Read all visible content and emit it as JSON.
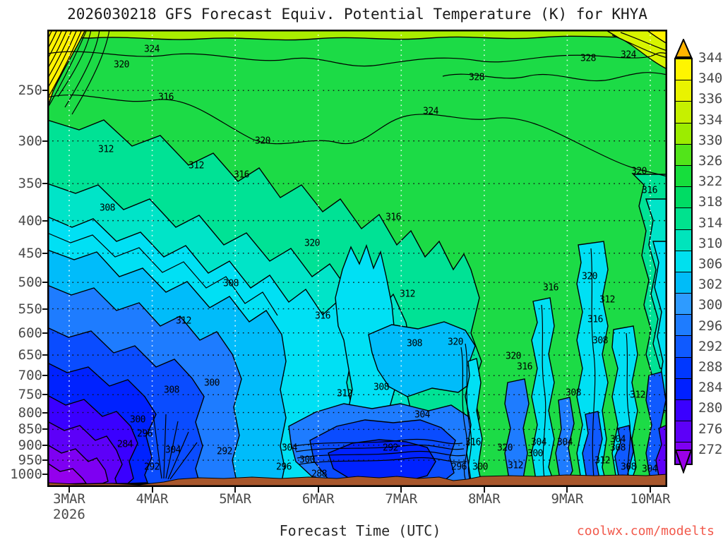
{
  "title": "2026030218 GFS Forecast Equiv. Potential Temperature (K) for KHYA",
  "watermark": {
    "text": "coolwx.com/modelts",
    "color": "#F2594B"
  },
  "chart_data": {
    "type": "heatmap",
    "title": "2026030218 GFS Forecast Equiv. Potential Temperature (K) for KHYA",
    "xlabel": "Forecast Time (UTC)",
    "x_ticks": [
      "3MAR",
      "4MAR",
      "5MAR",
      "6MAR",
      "7MAR",
      "8MAR",
      "9MAR",
      "10MAR"
    ],
    "year": "2026",
    "y_ticks": [
      250,
      300,
      350,
      400,
      450,
      500,
      550,
      600,
      650,
      700,
      750,
      800,
      850,
      900,
      950,
      1000
    ],
    "y_scale": "log-pressure (hPa)",
    "units": "K",
    "grid": "dotted horizontal black at pressure levels, dotted white vertical at day ticks",
    "terrain_color": "#A8572C",
    "colorbar": {
      "labels": [
        "344",
        "340",
        "336",
        "334",
        "330",
        "326",
        "322",
        "318",
        "314",
        "310",
        "306",
        "302",
        "300",
        "296",
        "292",
        "288",
        "284",
        "280",
        "276",
        "272"
      ],
      "colors": [
        "#FFF500",
        "#E9F300",
        "#C6F000",
        "#9CEC00",
        "#52E41A",
        "#16DE3C",
        "#00DC64",
        "#00E28E",
        "#00E4BC",
        "#00E0EE",
        "#00BCF8",
        "#2E9BFF",
        "#1E7CFF",
        "#0F5AFF",
        "#0038FF",
        "#0020FF",
        "#3A00FF",
        "#5D00F8",
        "#7E00F2"
      ],
      "arrow_top_color": "#FFB400",
      "arrow_bottom_color": "#9A00E8"
    },
    "contour_labels_K": [
      [
        324,
        148,
        28
      ],
      [
        320,
        105,
        50
      ],
      [
        316,
        168,
        96
      ],
      [
        312,
        83,
        170
      ],
      [
        308,
        85,
        253
      ],
      [
        312,
        211,
        193
      ],
      [
        316,
        275,
        206
      ],
      [
        320,
        305,
        158
      ],
      [
        324,
        543,
        116
      ],
      [
        328,
        608,
        68
      ],
      [
        328,
        766,
        41
      ],
      [
        324,
        823,
        36
      ],
      [
        320,
        838,
        201
      ],
      [
        316,
        853,
        228
      ],
      [
        316,
        490,
        266
      ],
      [
        320,
        375,
        303
      ],
      [
        312,
        510,
        375
      ],
      [
        316,
        390,
        406
      ],
      [
        308,
        520,
        445
      ],
      [
        320,
        578,
        443
      ],
      [
        308,
        260,
        360
      ],
      [
        312,
        193,
        413
      ],
      [
        300,
        233,
        501
      ],
      [
        308,
        176,
        511
      ],
      [
        312,
        421,
        516
      ],
      [
        300,
        128,
        553
      ],
      [
        296,
        138,
        573
      ],
      [
        284,
        110,
        588
      ],
      [
        304,
        178,
        596
      ],
      [
        292,
        251,
        598
      ],
      [
        292,
        148,
        620
      ],
      [
        304,
        343,
        593
      ],
      [
        300,
        368,
        610
      ],
      [
        296,
        335,
        620
      ],
      [
        288,
        385,
        630
      ],
      [
        292,
        486,
        593
      ],
      [
        312,
        793,
        383
      ],
      [
        316,
        713,
        366
      ],
      [
        320,
        768,
        350
      ],
      [
        316,
        776,
        411
      ],
      [
        308,
        783,
        441
      ],
      [
        320,
        660,
        463
      ],
      [
        316,
        676,
        478
      ],
      [
        308,
        473,
        507
      ],
      [
        304,
        531,
        546
      ],
      [
        308,
        745,
        515
      ],
      [
        312,
        836,
        518
      ],
      [
        304,
        696,
        585
      ],
      [
        304,
        733,
        585
      ],
      [
        304,
        808,
        581
      ],
      [
        308,
        808,
        593
      ],
      [
        316,
        603,
        585
      ],
      [
        320,
        648,
        593
      ],
      [
        300,
        691,
        601
      ],
      [
        296,
        583,
        620
      ],
      [
        300,
        613,
        620
      ],
      [
        312,
        663,
        618
      ],
      [
        312,
        786,
        611
      ],
      [
        308,
        823,
        620
      ],
      [
        304,
        853,
        623
      ]
    ]
  }
}
